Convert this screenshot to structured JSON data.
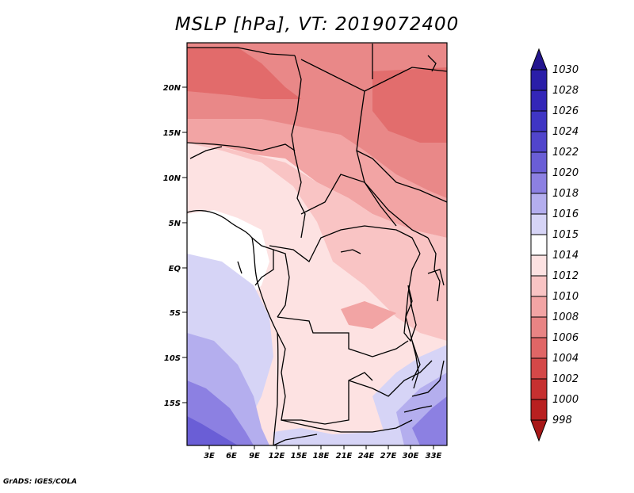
{
  "title": "MSLP [hPa], VT: 2019072400",
  "footer": "GrADS: IGES/COLA",
  "map": {
    "lat_labels": [
      "20N",
      "15N",
      "10N",
      "5N",
      "EQ",
      "5S",
      "10S",
      "15S"
    ],
    "lon_labels": [
      "3E",
      "6E",
      "9E",
      "12E",
      "15E",
      "18E",
      "21E",
      "24E",
      "27E",
      "30E",
      "33E"
    ]
  },
  "colorbar": {
    "max_label": "1030",
    "levels": [
      {
        "label": "1028",
        "color": "#2a1ea8"
      },
      {
        "label": "1026",
        "color": "#3326b8"
      },
      {
        "label": "1024",
        "color": "#3f35c4"
      },
      {
        "label": "1022",
        "color": "#5145cc"
      },
      {
        "label": "1020",
        "color": "#6a5ed6"
      },
      {
        "label": "1018",
        "color": "#8c80e2"
      },
      {
        "label": "1016",
        "color": "#b4aeee"
      },
      {
        "label": "1015",
        "color": "#d6d4f6"
      },
      {
        "label": "1014",
        "color": "#ffffff"
      },
      {
        "label": "1012",
        "color": "#fde2e2"
      },
      {
        "label": "1010",
        "color": "#f9c4c4"
      },
      {
        "label": "1008",
        "color": "#f2a4a4"
      },
      {
        "label": "1006",
        "color": "#e88484"
      },
      {
        "label": "1004",
        "color": "#e06666"
      },
      {
        "label": "1002",
        "color": "#d44848"
      },
      {
        "label": "1000",
        "color": "#c63030"
      },
      {
        "label": "998",
        "color": "#b82020"
      }
    ],
    "top_cap_color": "#24168f",
    "bottom_cap_color": "#a81818"
  }
}
